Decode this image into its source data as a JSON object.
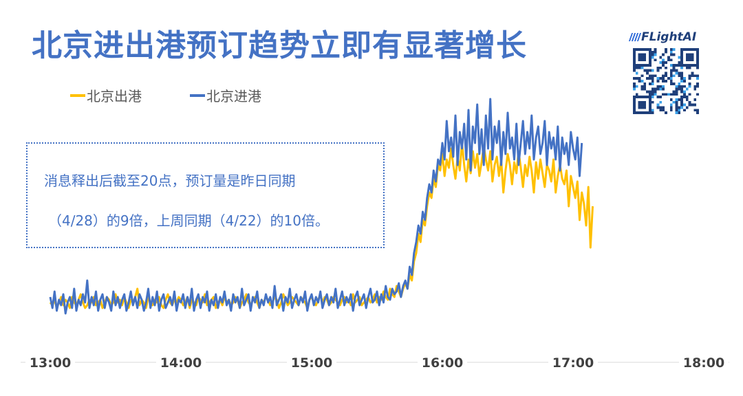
{
  "title": "北京进出港预订趋势立即有显著增长",
  "brand": {
    "name": "FLightAI",
    "qr_icon": "qr-code-icon"
  },
  "note": {
    "line1": "消息释出后截至20点，预订量是昨日同期",
    "line2": "（4/28）的9倍，上周同期（4/22）的10倍。"
  },
  "colors": {
    "title": "#4472c4",
    "outbound": "#ffc000",
    "inbound": "#4472c4",
    "axis": "#d9d9d9",
    "tick": "#404040"
  },
  "chart_data": {
    "type": "line",
    "legend_position": "top-left",
    "grid": false,
    "x_ticks": [
      "13:00",
      "14:00",
      "15:00",
      "16:00",
      "17:00",
      "18:00"
    ],
    "xlim": [
      "13:00",
      "18:00"
    ],
    "ylim": [
      0,
      100
    ],
    "series": [
      {
        "name": "北京出港",
        "color": "#ffc000",
        "x_start": "13:00",
        "x_step_minutes": 1,
        "values": [
          20,
          19,
          21,
          18,
          20,
          22,
          19,
          21,
          20,
          18,
          22,
          20,
          19,
          21,
          23,
          20,
          18,
          19,
          21,
          20,
          22,
          19,
          20,
          21,
          18,
          20,
          22,
          21,
          19,
          20,
          23,
          20,
          21,
          19,
          22,
          20,
          18,
          21,
          20,
          22,
          25,
          19,
          21,
          20,
          18,
          22,
          20,
          19,
          21,
          20,
          22,
          19,
          18,
          21,
          23,
          20,
          19,
          21,
          20,
          22,
          21,
          19,
          20,
          22,
          18,
          21,
          20,
          19,
          22,
          21,
          20,
          23,
          19,
          20,
          21,
          22,
          18,
          20,
          21,
          19,
          22,
          20,
          21,
          19,
          20,
          22,
          21,
          18,
          20,
          21,
          23,
          20,
          19,
          21,
          22,
          20,
          18,
          21,
          20,
          22,
          21,
          19,
          20,
          22,
          21,
          18,
          20,
          23,
          21,
          19,
          20,
          22,
          21,
          20,
          19,
          22,
          21,
          20,
          18,
          21,
          22,
          20,
          19,
          21,
          23,
          20,
          22,
          21,
          19,
          20,
          22,
          21,
          20,
          19,
          21,
          22,
          20,
          21,
          19,
          23,
          20,
          21,
          22,
          19,
          20,
          21,
          22,
          20,
          21,
          23,
          20,
          22,
          21,
          24,
          22,
          21,
          25,
          23,
          22,
          26,
          24,
          22,
          25,
          27,
          25,
          30,
          28,
          35,
          38,
          45,
          42,
          50,
          48,
          55,
          60,
          58,
          65,
          62,
          70,
          68,
          74,
          66,
          72,
          69,
          76,
          70,
          65,
          73,
          68,
          78,
          70,
          64,
          72,
          67,
          75,
          69,
          74,
          66,
          71,
          77,
          72,
          68,
          75,
          64,
          70,
          73,
          66,
          72,
          60,
          68,
          74,
          70,
          63,
          71,
          67,
          75,
          69,
          62,
          70,
          66,
          73,
          68,
          60,
          71,
          65,
          72,
          67,
          62,
          70,
          68,
          64,
          72,
          60,
          66,
          70,
          65,
          63,
          68,
          55,
          66,
          62,
          58,
          64,
          50,
          60,
          56,
          48,
          62,
          40,
          55
        ]
      },
      {
        "name": "北京进港",
        "color": "#4472c4",
        "x_start": "13:00",
        "x_step_minutes": 1,
        "values": [
          22,
          18,
          24,
          17,
          21,
          19,
          23,
          16,
          20,
          22,
          18,
          25,
          17,
          21,
          19,
          23,
          20,
          28,
          18,
          22,
          19,
          24,
          17,
          21,
          23,
          18,
          22,
          20,
          17,
          24,
          19,
          22,
          18,
          21,
          23,
          17,
          20,
          24,
          19,
          22,
          18,
          23,
          21,
          17,
          20,
          25,
          18,
          22,
          19,
          24,
          17,
          21,
          23,
          18,
          20,
          22,
          19,
          24,
          17,
          21,
          20,
          23,
          18,
          22,
          19,
          25,
          17,
          21,
          23,
          18,
          22,
          20,
          24,
          17,
          21,
          19,
          23,
          18,
          22,
          20,
          24,
          19,
          21,
          17,
          23,
          20,
          22,
          18,
          25,
          19,
          21,
          23,
          17,
          22,
          20,
          24,
          18,
          21,
          19,
          23,
          20,
          22,
          18,
          26,
          19,
          21,
          23,
          17,
          22,
          20,
          25,
          18,
          21,
          23,
          19,
          22,
          20,
          24,
          17,
          21,
          23,
          19,
          22,
          20,
          24,
          18,
          21,
          23,
          19,
          22,
          20,
          25,
          18,
          21,
          24,
          19,
          22,
          20,
          23,
          17,
          22,
          24,
          19,
          21,
          23,
          18,
          22,
          25,
          20,
          21,
          24,
          19,
          23,
          20,
          26,
          22,
          21,
          25,
          23,
          24,
          27,
          22,
          26,
          28,
          25,
          33,
          30,
          38,
          42,
          48,
          45,
          53,
          50,
          58,
          63,
          60,
          68,
          64,
          72,
          70,
          78,
          72,
          86,
          75,
          80,
          73,
          88,
          70,
          82,
          76,
          85,
          72,
          90,
          68,
          84,
          78,
          92,
          74,
          83,
          70,
          88,
          76,
          94,
          72,
          84,
          78,
          86,
          70,
          82,
          74,
          89,
          76,
          80,
          72,
          85,
          70,
          78,
          86,
          74,
          82,
          76,
          88,
          72,
          80,
          84,
          74,
          78,
          86,
          70,
          82,
          76,
          80,
          72,
          84,
          68,
          80,
          74,
          78,
          70,
          82,
          76,
          72,
          80,
          66,
          78
        ]
      }
    ]
  }
}
